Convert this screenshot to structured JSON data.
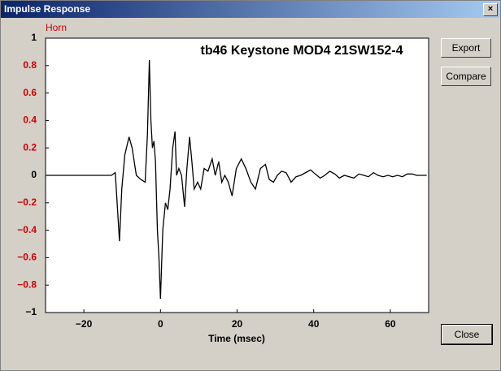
{
  "window": {
    "title": "Impulse Response",
    "buttons": [
      "Export",
      "Compare",
      "Close"
    ]
  },
  "chart_data": {
    "type": "line",
    "title": "tb46 Keystone MOD4 21SW152-4",
    "xlabel": "Time (msec)",
    "x": [
      -29.7,
      -12.8,
      -11.8,
      -10.7,
      -10.1,
      -9.3,
      -8.2,
      -7.4,
      -6.3,
      -5.1,
      -4.0,
      -3.4,
      -2.9,
      -2.5,
      -2.1,
      -1.7,
      -1.3,
      -0.8,
      -0.4,
      0,
      0.6,
      1.3,
      1.9,
      2.5,
      3.2,
      3.8,
      4.2,
      4.8,
      5.5,
      6.3,
      6.9,
      7.6,
      8.2,
      8.8,
      9.7,
      10.5,
      11.4,
      12.4,
      13.5,
      14.3,
      15.2,
      16.0,
      16.8,
      17.7,
      18.7,
      19.8,
      21.1,
      22.3,
      23.6,
      24.8,
      26.1,
      27.4,
      28.4,
      29.5,
      30.5,
      31.6,
      32.8,
      34.1,
      35.4,
      36.6,
      37.9,
      39.2,
      40.4,
      41.7,
      42.9,
      44.2,
      45.5,
      46.7,
      48.0,
      49.3,
      50.5,
      51.8,
      53.1,
      54.3,
      55.6,
      56.8,
      58.1,
      59.4,
      60.6,
      61.9,
      63.2,
      64.4,
      65.7,
      66.9,
      68.2,
      69.5
    ],
    "series": [
      {
        "name": "Horn",
        "color": "#000000",
        "values": [
          0,
          0,
          0.02,
          -0.48,
          -0.1,
          0.15,
          0.28,
          0.2,
          0.0,
          -0.03,
          -0.05,
          0.3,
          0.84,
          0.4,
          0.2,
          0.25,
          0.1,
          -0.4,
          -0.6,
          -0.9,
          -0.4,
          -0.2,
          -0.25,
          -0.1,
          0.2,
          0.32,
          0.0,
          0.05,
          0.0,
          -0.23,
          0.05,
          0.28,
          0.1,
          -0.1,
          -0.05,
          -0.1,
          0.05,
          0.03,
          0.12,
          0.0,
          0.1,
          -0.05,
          0.0,
          -0.05,
          -0.15,
          0.05,
          0.12,
          0.05,
          -0.05,
          -0.1,
          0.05,
          0.08,
          -0.03,
          -0.05,
          0.0,
          0.03,
          0.02,
          -0.05,
          -0.01,
          0.0,
          0.02,
          0.04,
          0.01,
          -0.02,
          0.0,
          0.03,
          0.01,
          -0.02,
          0.0,
          -0.01,
          -0.02,
          0.01,
          0.0,
          -0.01,
          0.02,
          0.0,
          -0.01,
          0.0,
          -0.01,
          0.0,
          -0.01,
          0.01,
          0.01,
          0.0,
          0.0,
          0.0
        ]
      }
    ],
    "legend_color": "#cc0000",
    "xlim": [
      -30,
      70
    ],
    "xticks": [
      {
        "value": -20,
        "label": "−20"
      },
      0,
      20,
      40,
      60
    ],
    "ylim": [
      -1,
      1
    ],
    "yticks": [
      {
        "value": -1,
        "label": "−1"
      },
      {
        "value": -0.8,
        "label": "−0.8"
      },
      {
        "value": -0.6,
        "label": "−0.6"
      },
      {
        "value": -0.4,
        "label": "−0.4"
      },
      {
        "value": -0.2,
        "label": "−0.2"
      },
      0,
      0.2,
      0.4,
      0.6,
      0.8,
      1
    ],
    "ytick_colors": [
      "#000000",
      "#cc0000",
      "#cc0000",
      "#cc0000",
      "#cc0000",
      "#000000",
      "#cc0000",
      "#cc0000",
      "#cc0000",
      "#cc0000",
      "#000000"
    ],
    "grid": false
  }
}
